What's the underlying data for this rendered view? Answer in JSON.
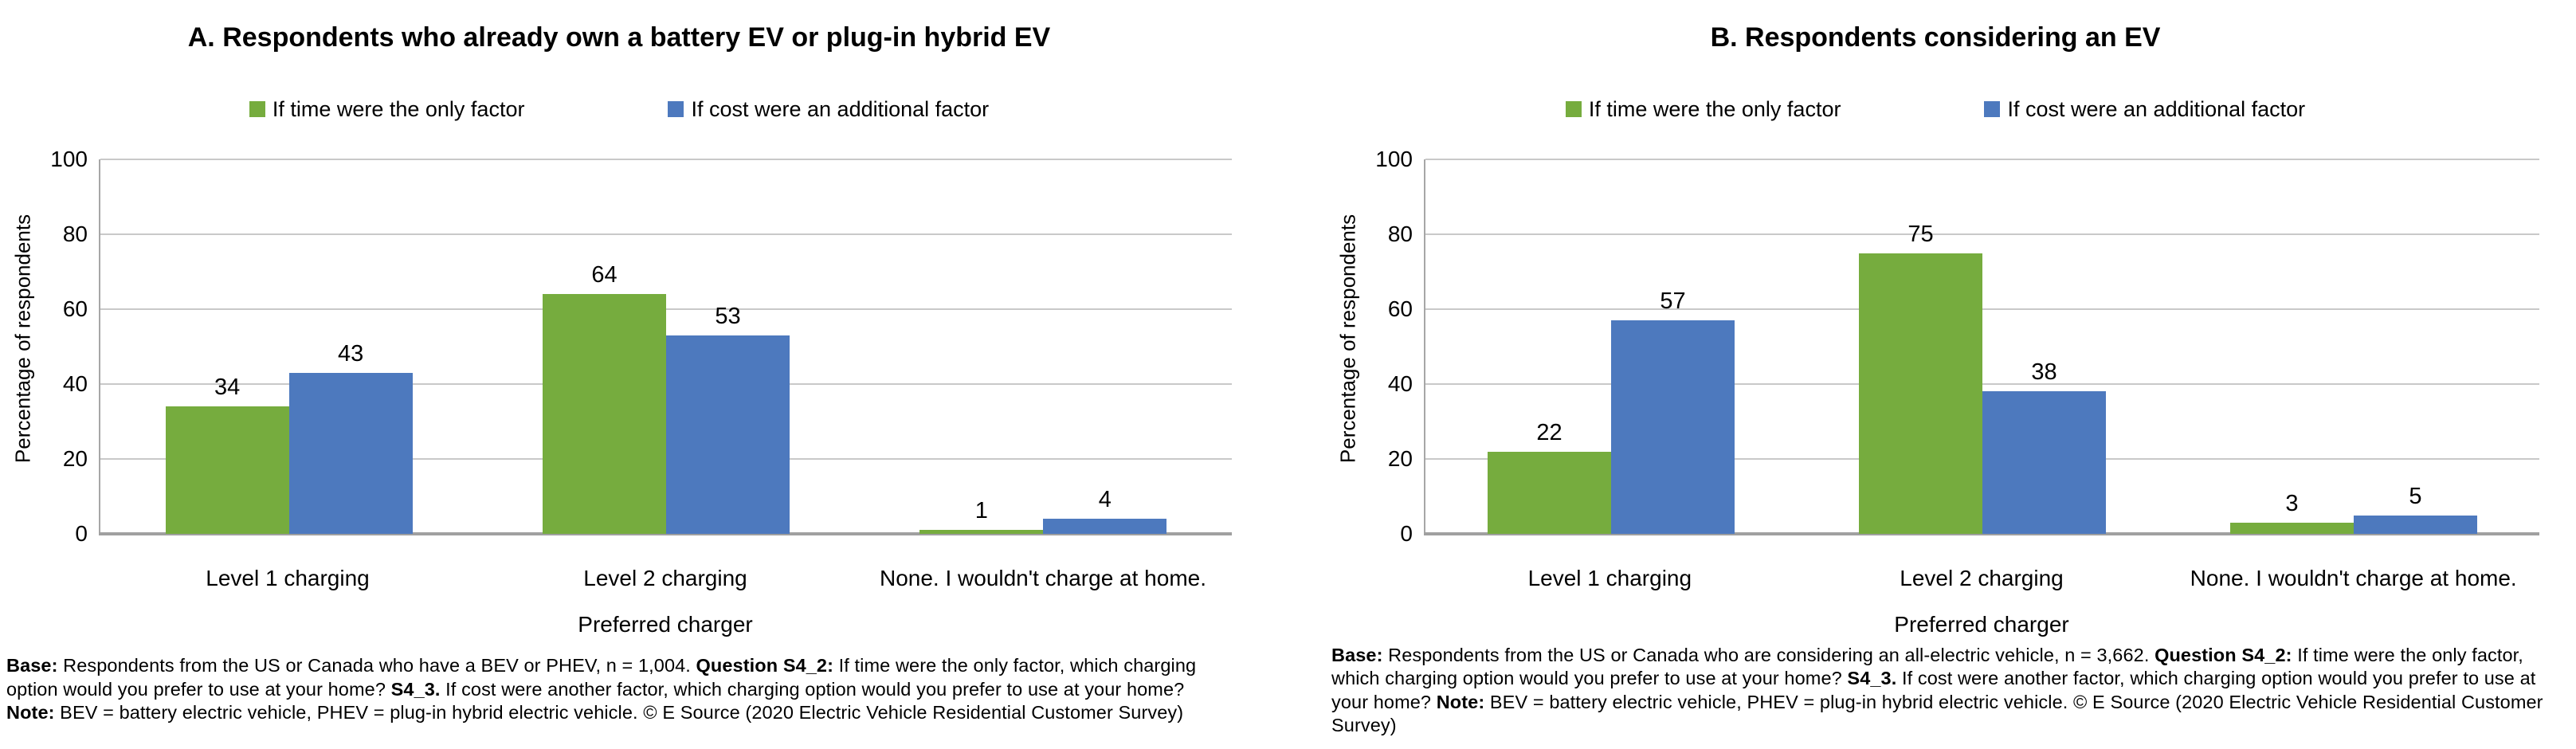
{
  "chart_data": [
    {
      "type": "bar",
      "title": "A. Respondents who already own a battery EV or plug-in hybrid EV",
      "categories": [
        "Level 1 charging",
        "Level 2 charging",
        "None. I wouldn't charge at home."
      ],
      "series": [
        {
          "name": "If time were the only factor",
          "color": "#76AC3E",
          "values": [
            34,
            64,
            1
          ]
        },
        {
          "name": "If cost were an additional factor",
          "color": "#4D79BE",
          "values": [
            43,
            53,
            4
          ]
        }
      ],
      "xlabel": "Preferred charger",
      "ylabel": "Percentage of respondents",
      "ylim": [
        0,
        100
      ],
      "yticks": [
        0,
        20,
        40,
        60,
        80,
        100
      ],
      "grid": true,
      "legend_position": "top-center",
      "footnote_segments": [
        {
          "text": "Base:",
          "bold": true
        },
        {
          "text": " Respondents from the US or Canada who have a BEV or PHEV, n = 1,004. ",
          "bold": false
        },
        {
          "text": "Question S4_2:",
          "bold": true
        },
        {
          "text": " If time were the only factor, which charging option would you prefer to use at your home? ",
          "bold": false
        },
        {
          "text": "S4_3.",
          "bold": true
        },
        {
          "text": " If cost were another factor, which charging option would you prefer to use at your home? ",
          "bold": false
        },
        {
          "text": "Note:",
          "bold": true
        },
        {
          "text": " BEV = battery electric vehicle, PHEV = plug-in hybrid electric vehicle. © E Source (2020 Electric Vehicle Residential Customer Survey)",
          "bold": false
        }
      ]
    },
    {
      "type": "bar",
      "title": "B. Respondents considering an EV",
      "categories": [
        "Level 1 charging",
        "Level 2 charging",
        "None. I wouldn't charge at home."
      ],
      "series": [
        {
          "name": "If time were the only factor",
          "color": "#76AC3E",
          "values": [
            22,
            75,
            3
          ]
        },
        {
          "name": "If cost were an additional factor",
          "color": "#4D79BE",
          "values": [
            57,
            38,
            5
          ]
        }
      ],
      "xlabel": "Preferred charger",
      "ylabel": "Percentage of respondents",
      "ylim": [
        0,
        100
      ],
      "yticks": [
        0,
        20,
        40,
        60,
        80,
        100
      ],
      "grid": true,
      "legend_position": "top-center",
      "footnote_segments": [
        {
          "text": "Base:",
          "bold": true
        },
        {
          "text": " Respondents from the US or Canada who are considering an all-electric vehicle, n = 3,662. ",
          "bold": false
        },
        {
          "text": "Question S4_2:",
          "bold": true
        },
        {
          "text": " If time were the only factor, which charging option would you prefer to use at your home? ",
          "bold": false
        },
        {
          "text": "S4_3.",
          "bold": true
        },
        {
          "text": " If cost were another factor, which charging option would you prefer to use at your home? ",
          "bold": false
        },
        {
          "text": "Note:",
          "bold": true
        },
        {
          "text": " BEV = battery electric vehicle, PHEV = plug-in hybrid electric vehicle. © E Source (2020 Electric Vehicle Residential Customer Survey)",
          "bold": false
        }
      ]
    }
  ],
  "colors": {
    "series_time_green": "#76AC3E",
    "series_cost_blue": "#4D79BE",
    "gridline": "#C9C9C9",
    "axis": "#A6A6A6",
    "text": "#000000"
  }
}
